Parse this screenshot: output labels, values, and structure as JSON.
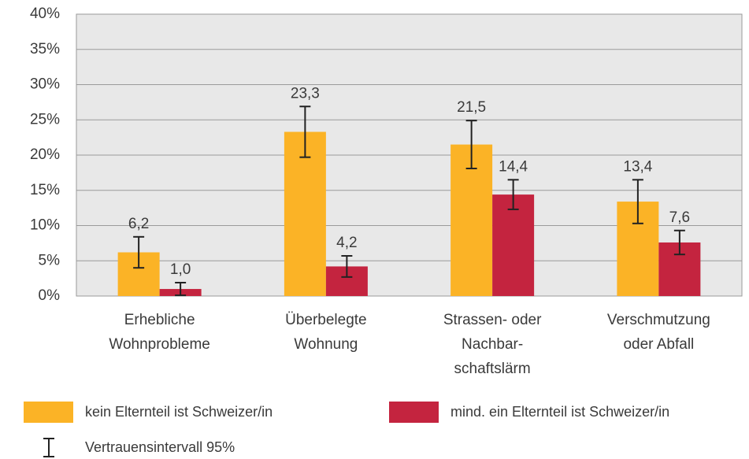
{
  "chart_data": {
    "type": "bar",
    "categories": [
      [
        "Erhebliche",
        "Wohnprobleme"
      ],
      [
        "Überbelegte",
        "Wohnung"
      ],
      [
        "Strassen- oder",
        "Nachbar-",
        "schaftslärm"
      ],
      [
        "Verschmutzung",
        "oder Abfall"
      ]
    ],
    "series": [
      {
        "name": "kein Elternteil ist Schweizer/in",
        "color": "#fbb326",
        "values": [
          6.2,
          23.3,
          21.5,
          13.4
        ],
        "value_labels": [
          "6,2",
          "23,3",
          "21,5",
          "13,4"
        ],
        "errors": [
          2.2,
          3.6,
          3.4,
          3.1
        ]
      },
      {
        "name": "mind. ein Elternteil ist Schweizer/in",
        "color": "#c4243f",
        "values": [
          1.0,
          4.2,
          14.4,
          7.6
        ],
        "value_labels": [
          "1,0",
          "4,2",
          "14,4",
          "7,6"
        ],
        "errors": [
          0.9,
          1.5,
          2.1,
          1.7
        ]
      }
    ],
    "error_label": "Vertrauensintervall 95%",
    "ylim": [
      0,
      40
    ],
    "yticks": [
      {
        "value": 0,
        "label": "0%"
      },
      {
        "value": 5,
        "label": "5%"
      },
      {
        "value": 10,
        "label": "10%"
      },
      {
        "value": 15,
        "label": "15%"
      },
      {
        "value": 20,
        "label": "20%"
      },
      {
        "value": 25,
        "label": "25%"
      },
      {
        "value": 30,
        "label": "30%"
      },
      {
        "value": 35,
        "label": "35%"
      },
      {
        "value": 40,
        "label": "40%"
      }
    ],
    "grid": true,
    "legend": "bottom"
  }
}
